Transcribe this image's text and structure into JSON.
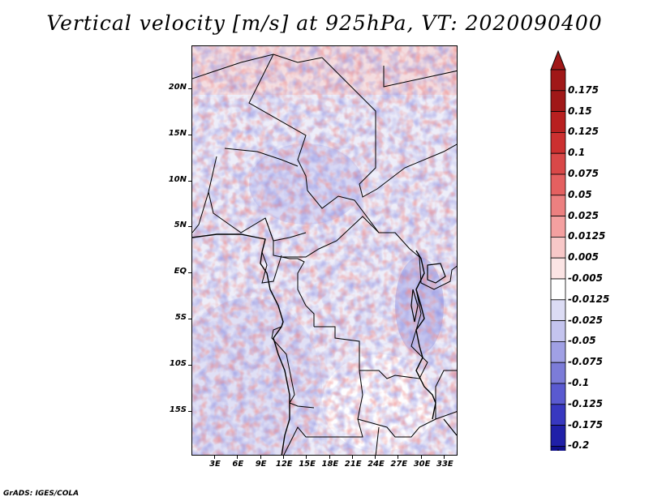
{
  "title": "Vertical velocity [m/s] at 925hPa, VT: 2020090400",
  "credit": "GrADS: IGES/COLA",
  "map": {
    "lat_labels": [
      "20N",
      "15N",
      "10N",
      "5N",
      "EQ",
      "5S",
      "10S",
      "15S"
    ],
    "lon_labels": [
      "3E",
      "6E",
      "9E",
      "12E",
      "15E",
      "18E",
      "21E",
      "24E",
      "27E",
      "30E",
      "33E"
    ]
  },
  "colorbar": {
    "levels": [
      "0.175",
      "0.15",
      "0.125",
      "0.1",
      "0.075",
      "0.05",
      "0.025",
      "0.0125",
      "0.005",
      "-0.005",
      "-0.0125",
      "-0.025",
      "-0.05",
      "-0.075",
      "-0.1",
      "-0.125",
      "-0.175",
      "-0.2"
    ],
    "colors": [
      "#a01818",
      "#b82020",
      "#cc3030",
      "#d94848",
      "#e46060",
      "#ec8080",
      "#f4a0a0",
      "#f8c8c8",
      "#fbe4e4",
      "#ffffff",
      "#dcdcf4",
      "#c4c4ee",
      "#a0a0e4",
      "#7c7cd8",
      "#5a5ad0",
      "#3838c0",
      "#2020a8",
      "#10108c"
    ]
  }
}
